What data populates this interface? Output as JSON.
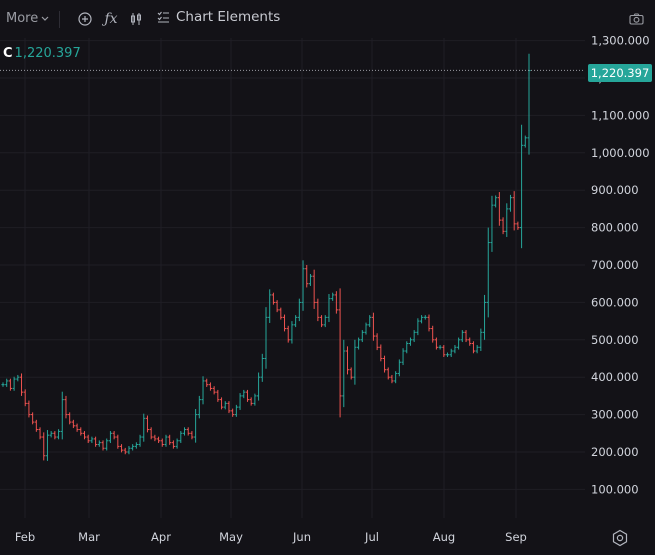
{
  "toolbar": {
    "more_label": "More",
    "chart_elements_label": "Chart Elements",
    "icons": [
      "plus-circle-icon",
      "function-icon",
      "candle-style-icon",
      "chart-elements-icon",
      "camera-icon"
    ]
  },
  "legend": {
    "label": "C",
    "value": "1,220.397"
  },
  "price_tag": "1,220.397",
  "colors": {
    "background": "#131217",
    "up": "#26a69a",
    "down": "#ef5350",
    "grid": "#1f1e25",
    "axis_text": "#d1d4dc"
  },
  "chart_data": {
    "type": "bar",
    "style": "ohlc",
    "title": "",
    "ylabel": "",
    "xlabel": "",
    "x_tick_labels": [
      "Feb",
      "Mar",
      "Apr",
      "May",
      "Jun",
      "Jul",
      "Aug",
      "Sep"
    ],
    "y_tick_labels": [
      "1,300.000",
      "1,200.000",
      "1,100.000",
      "1,000.000",
      "900.000",
      "800.000",
      "700.000",
      "600.000",
      "500.000",
      "400.000",
      "300.000",
      "200.000",
      "100.000"
    ],
    "ylim": [
      0,
      1340
    ],
    "last_price": 1220.397,
    "series": [
      {
        "values": [
          380,
          390,
          370,
          395,
          400,
          360,
          330,
          300,
          280,
          260,
          240,
          190,
          245,
          250,
          240,
          255,
          340,
          300,
          280,
          270,
          260,
          250,
          240,
          230,
          235,
          220,
          225,
          210,
          230,
          250,
          240,
          215,
          205,
          200,
          210,
          215,
          220,
          240,
          290,
          260,
          240,
          235,
          230,
          220,
          240,
          225,
          215,
          230,
          250,
          260,
          250,
          240,
          300,
          340,
          390,
          380,
          370,
          360,
          340,
          320,
          330,
          310,
          300,
          320,
          350,
          360,
          340,
          330,
          350,
          400,
          450,
          560,
          620,
          600,
          580,
          560,
          530,
          500,
          540,
          560,
          600,
          690,
          650,
          670,
          600,
          560,
          540,
          560,
          610,
          620,
          580,
          350,
          470,
          420,
          400,
          480,
          500,
          520,
          540,
          560,
          510,
          480,
          450,
          420,
          400,
          390,
          410,
          440,
          470,
          490,
          500,
          520,
          550,
          560,
          560,
          530,
          500,
          480,
          480,
          460,
          460,
          470,
          480,
          500,
          520,
          500,
          490,
          470,
          480,
          520,
          600,
          760,
          860,
          880,
          820,
          790,
          850,
          880,
          810,
          800,
          1020,
          1040,
          1220
        ]
      }
    ]
  }
}
